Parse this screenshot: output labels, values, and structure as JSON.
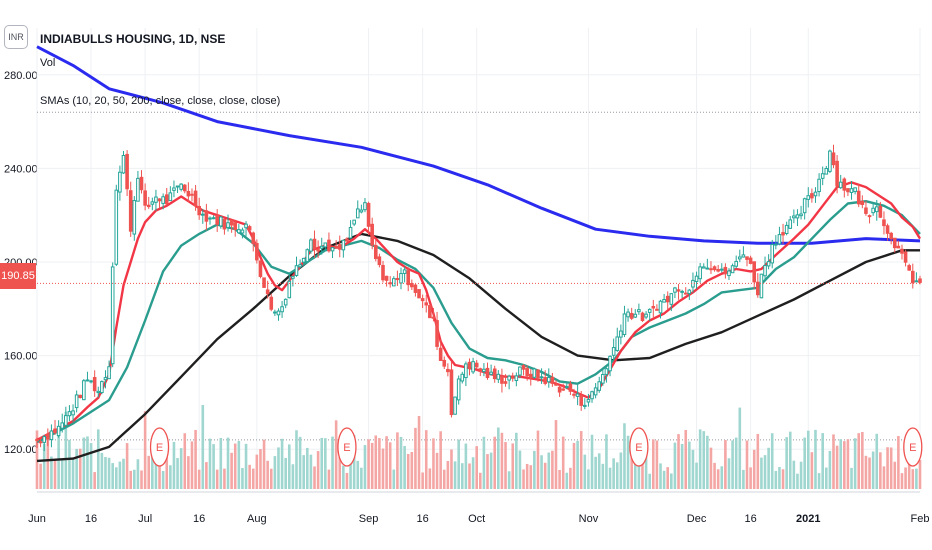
{
  "header": {
    "title": "INDIABULLS HOUSING, 1D, NSE",
    "vol_label": "Vol",
    "sma_label": "SMAs (10, 20, 50, 200, close, close, close, close)",
    "currency": "INR"
  },
  "current_price_label": "190.85",
  "colors": {
    "up": "#26a69a",
    "down": "#ef5350",
    "vol_up": "#9fd6cf",
    "vol_down": "#f4a6a5",
    "sma10": "#f23645",
    "sma20": "#2a9d8f",
    "sma50": "#1f1f1f",
    "sma200": "#2b2bf0",
    "grid": "#eef0f3",
    "axis_text": "#131722"
  },
  "chart_data": {
    "type": "candlestick",
    "title": "INDIABULLS HOUSING, 1D, NSE",
    "ylim": [
      103,
      300
    ],
    "y_ticks": [
      "120.00",
      "160.00",
      "200.00",
      "240.00",
      "280.00"
    ],
    "y_tick_values": [
      120,
      160,
      200,
      240,
      280
    ],
    "x_ticks": [
      "Jun",
      "16",
      "Jul",
      "16",
      "Aug",
      "Sep",
      "16",
      "Oct",
      "Nov",
      "Dec",
      "16",
      "2021",
      "Feb"
    ],
    "x_tick_days": [
      0,
      15,
      30,
      45,
      61,
      92,
      107,
      122,
      153,
      183,
      198,
      214,
      245
    ],
    "x_range_days": [
      0,
      245
    ],
    "reference_lines": [
      124,
      264
    ],
    "current_price": 190.85,
    "grid": true,
    "price_path": [
      [
        0,
        124
      ],
      [
        6,
        129
      ],
      [
        10,
        138
      ],
      [
        14,
        150
      ],
      [
        17,
        145
      ],
      [
        20,
        156
      ],
      [
        21,
        200
      ],
      [
        22,
        232
      ],
      [
        24,
        245
      ],
      [
        26,
        215
      ],
      [
        28,
        238
      ],
      [
        30,
        222
      ],
      [
        33,
        228
      ],
      [
        36,
        226
      ],
      [
        40,
        233
      ],
      [
        43,
        228
      ],
      [
        46,
        220
      ],
      [
        50,
        218
      ],
      [
        54,
        215
      ],
      [
        58,
        216
      ],
      [
        60,
        208
      ],
      [
        62,
        196
      ],
      [
        64,
        185
      ],
      [
        66,
        178
      ],
      [
        68,
        181
      ],
      [
        70,
        192
      ],
      [
        73,
        200
      ],
      [
        76,
        211
      ],
      [
        78,
        205
      ],
      [
        80,
        208
      ],
      [
        83,
        204
      ],
      [
        86,
        209
      ],
      [
        89,
        222
      ],
      [
        91,
        223
      ],
      [
        93,
        206
      ],
      [
        95,
        197
      ],
      [
        98,
        190
      ],
      [
        101,
        196
      ],
      [
        104,
        191
      ],
      [
        107,
        183
      ],
      [
        110,
        174
      ],
      [
        112,
        158
      ],
      [
        114,
        154
      ],
      [
        115,
        137
      ],
      [
        117,
        148
      ],
      [
        119,
        157
      ],
      [
        122,
        155
      ],
      [
        126,
        151
      ],
      [
        130,
        150
      ],
      [
        134,
        153
      ],
      [
        138,
        152
      ],
      [
        141,
        150
      ],
      [
        144,
        147
      ],
      [
        148,
        145
      ],
      [
        151,
        140
      ],
      [
        154,
        143
      ],
      [
        157,
        152
      ],
      [
        160,
        163
      ],
      [
        163,
        178
      ],
      [
        166,
        178
      ],
      [
        169,
        176
      ],
      [
        172,
        182
      ],
      [
        175,
        184
      ],
      [
        178,
        190
      ],
      [
        181,
        188
      ],
      [
        184,
        200
      ],
      [
        187,
        199
      ],
      [
        190,
        195
      ],
      [
        193,
        197
      ],
      [
        196,
        205
      ],
      [
        198,
        198
      ],
      [
        200,
        188
      ],
      [
        202,
        199
      ],
      [
        205,
        210
      ],
      [
        208,
        216
      ],
      [
        211,
        218
      ],
      [
        213,
        225
      ],
      [
        215,
        228
      ],
      [
        217,
        235
      ],
      [
        219,
        242
      ],
      [
        220,
        248
      ],
      [
        222,
        235
      ],
      [
        224,
        232
      ],
      [
        227,
        230
      ],
      [
        230,
        220
      ],
      [
        233,
        226
      ],
      [
        235,
        215
      ],
      [
        237,
        212
      ],
      [
        239,
        205
      ],
      [
        241,
        198
      ],
      [
        243,
        193
      ],
      [
        245,
        190.85
      ]
    ],
    "series": [
      {
        "name": "SMA 200",
        "color": "#2b2bf0",
        "points": [
          [
            0,
            292
          ],
          [
            10,
            284
          ],
          [
            20,
            274
          ],
          [
            35,
            268
          ],
          [
            50,
            260
          ],
          [
            70,
            254
          ],
          [
            90,
            249
          ],
          [
            110,
            241
          ],
          [
            125,
            233
          ],
          [
            140,
            223
          ],
          [
            155,
            214
          ],
          [
            170,
            211
          ],
          [
            185,
            209
          ],
          [
            200,
            208
          ],
          [
            215,
            208
          ],
          [
            230,
            210
          ],
          [
            245,
            209
          ]
        ]
      },
      {
        "name": "SMA 50",
        "color": "#1f1f1f",
        "points": [
          [
            0,
            115
          ],
          [
            10,
            116
          ],
          [
            20,
            121
          ],
          [
            30,
            135
          ],
          [
            40,
            151
          ],
          [
            50,
            167
          ],
          [
            60,
            180
          ],
          [
            70,
            194
          ],
          [
            80,
            206
          ],
          [
            90,
            212
          ],
          [
            100,
            209
          ],
          [
            110,
            203
          ],
          [
            120,
            193
          ],
          [
            130,
            180
          ],
          [
            140,
            168
          ],
          [
            150,
            160
          ],
          [
            160,
            158
          ],
          [
            170,
            159
          ],
          [
            180,
            165
          ],
          [
            190,
            170
          ],
          [
            200,
            177
          ],
          [
            210,
            184
          ],
          [
            220,
            192
          ],
          [
            230,
            200
          ],
          [
            240,
            205
          ],
          [
            245,
            205
          ]
        ]
      },
      {
        "name": "SMA 20",
        "color": "#2a9d8f",
        "points": [
          [
            0,
            123
          ],
          [
            10,
            131
          ],
          [
            20,
            141
          ],
          [
            25,
            155
          ],
          [
            30,
            175
          ],
          [
            35,
            196
          ],
          [
            40,
            207
          ],
          [
            45,
            212
          ],
          [
            50,
            216
          ],
          [
            55,
            214
          ],
          [
            60,
            208
          ],
          [
            65,
            198
          ],
          [
            70,
            195
          ],
          [
            75,
            200
          ],
          [
            80,
            205
          ],
          [
            85,
            207
          ],
          [
            90,
            209
          ],
          [
            95,
            206
          ],
          [
            100,
            201
          ],
          [
            105,
            197
          ],
          [
            110,
            189
          ],
          [
            115,
            174
          ],
          [
            120,
            163
          ],
          [
            125,
            159
          ],
          [
            130,
            158
          ],
          [
            135,
            156
          ],
          [
            140,
            153
          ],
          [
            145,
            149
          ],
          [
            150,
            148
          ],
          [
            155,
            152
          ],
          [
            160,
            158
          ],
          [
            165,
            168
          ],
          [
            170,
            172
          ],
          [
            175,
            175
          ],
          [
            180,
            178
          ],
          [
            185,
            182
          ],
          [
            190,
            187
          ],
          [
            195,
            188
          ],
          [
            200,
            189
          ],
          [
            205,
            197
          ],
          [
            210,
            202
          ],
          [
            215,
            210
          ],
          [
            220,
            218
          ],
          [
            225,
            225
          ],
          [
            230,
            226
          ],
          [
            235,
            224
          ],
          [
            240,
            220
          ],
          [
            245,
            212
          ]
        ]
      },
      {
        "name": "SMA 10",
        "color": "#f23645",
        "points": [
          [
            0,
            124
          ],
          [
            5,
            128
          ],
          [
            10,
            132
          ],
          [
            14,
            138
          ],
          [
            17,
            142
          ],
          [
            20,
            152
          ],
          [
            22,
            172
          ],
          [
            24,
            190
          ],
          [
            26,
            200
          ],
          [
            28,
            210
          ],
          [
            30,
            217
          ],
          [
            33,
            222
          ],
          [
            36,
            224
          ],
          [
            40,
            228
          ],
          [
            43,
            225
          ],
          [
            46,
            222
          ],
          [
            50,
            220
          ],
          [
            54,
            218
          ],
          [
            58,
            216
          ],
          [
            60,
            210
          ],
          [
            62,
            202
          ],
          [
            64,
            195
          ],
          [
            66,
            190
          ],
          [
            68,
            188
          ],
          [
            70,
            192
          ],
          [
            73,
            198
          ],
          [
            76,
            205
          ],
          [
            80,
            207
          ],
          [
            84,
            206
          ],
          [
            88,
            210
          ],
          [
            91,
            214
          ],
          [
            94,
            210
          ],
          [
            97,
            205
          ],
          [
            100,
            200
          ],
          [
            103,
            197
          ],
          [
            106,
            195
          ],
          [
            108,
            188
          ],
          [
            110,
            178
          ],
          [
            112,
            166
          ],
          [
            114,
            160
          ],
          [
            116,
            156
          ],
          [
            119,
            155
          ],
          [
            122,
            154
          ],
          [
            126,
            152
          ],
          [
            130,
            151
          ],
          [
            134,
            151
          ],
          [
            138,
            150
          ],
          [
            142,
            149
          ],
          [
            146,
            147
          ],
          [
            150,
            144
          ],
          [
            153,
            142
          ],
          [
            156,
            146
          ],
          [
            159,
            154
          ],
          [
            162,
            162
          ],
          [
            166,
            170
          ],
          [
            170,
            175
          ],
          [
            174,
            178
          ],
          [
            178,
            183
          ],
          [
            182,
            187
          ],
          [
            186,
            192
          ],
          [
            190,
            195
          ],
          [
            194,
            197
          ],
          [
            198,
            196
          ],
          [
            201,
            197
          ],
          [
            205,
            203
          ],
          [
            210,
            210
          ],
          [
            214,
            216
          ],
          [
            218,
            224
          ],
          [
            222,
            232
          ],
          [
            226,
            234
          ],
          [
            230,
            232
          ],
          [
            234,
            228
          ],
          [
            237,
            225
          ],
          [
            240,
            219
          ],
          [
            243,
            215
          ],
          [
            245,
            210
          ]
        ]
      }
    ],
    "earnings_days": [
      34,
      86,
      167,
      243
    ],
    "earnings_marker": "E"
  }
}
